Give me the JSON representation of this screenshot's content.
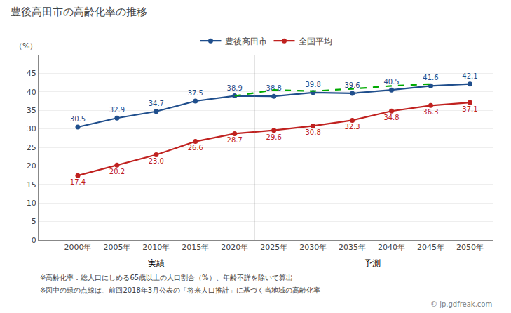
{
  "chart_data": {
    "type": "line",
    "title": "豊後高田市の高齢化率の推移",
    "ylabel": "（%）",
    "x": [
      2000,
      2005,
      2010,
      2015,
      2020,
      2025,
      2030,
      2035,
      2040,
      2045,
      2050
    ],
    "xlim": [
      1995,
      2053
    ],
    "xticks": [
      {
        "value": 2000,
        "label": "2000年"
      },
      {
        "value": 2005,
        "label": "2005年"
      },
      {
        "value": 2010,
        "label": "2010年"
      },
      {
        "value": 2015,
        "label": "2015年"
      },
      {
        "value": 2020,
        "label": "2020年"
      },
      {
        "value": 2025,
        "label": "2025年"
      },
      {
        "value": 2030,
        "label": "2030年"
      },
      {
        "value": 2035,
        "label": "2035年"
      },
      {
        "value": 2040,
        "label": "2040年"
      },
      {
        "value": 2045,
        "label": "2045年"
      },
      {
        "value": 2050,
        "label": "2050年"
      }
    ],
    "ylim": [
      0,
      50
    ],
    "yticks": [
      0,
      5,
      10,
      15,
      20,
      25,
      30,
      35,
      40,
      45
    ],
    "grid": "y",
    "legend": "top",
    "series": [
      {
        "name": "豊後高田市",
        "color": "#1F4E8C",
        "marker": "circle",
        "line_style": "solid",
        "data_labels": true,
        "values": [
          30.5,
          32.9,
          34.7,
          37.5,
          38.9,
          38.8,
          39.8,
          39.6,
          40.5,
          41.6,
          42.1
        ]
      },
      {
        "name": "全国平均",
        "color": "#C0211F",
        "marker": "circle",
        "line_style": "solid",
        "data_labels": true,
        "values": [
          17.4,
          20.2,
          23.0,
          26.6,
          28.7,
          29.6,
          30.8,
          32.3,
          34.8,
          36.3,
          37.1
        ],
        "value_labels": [
          "17.4",
          "20.2",
          "23.0",
          "26.6",
          "28.7",
          "29.6",
          "30.8",
          "32.3",
          "34.8",
          "36.3",
          "37.1"
        ]
      },
      {
        "color": "#00AA00",
        "line_style": "dash",
        "data_labels": false,
        "x": [
          2020,
          2025,
          2030,
          2035,
          2040,
          2045
        ],
        "values": [
          38.9,
          40.5,
          40.2,
          40.8,
          41.6,
          42.1
        ]
      }
    ],
    "annotations": {
      "periods": [
        "実績",
        "予測"
      ],
      "notes": [
        "※高齢化率：総人口にしめる65歳以上の人口割合（%）、年齢不詳を除いて算出",
        "※図中の緑の点線は、前回2018年3月公表の「将来人口推計」に基づく当地域の高齢化率"
      ],
      "credit": "© jp.gdfreak.com"
    }
  }
}
